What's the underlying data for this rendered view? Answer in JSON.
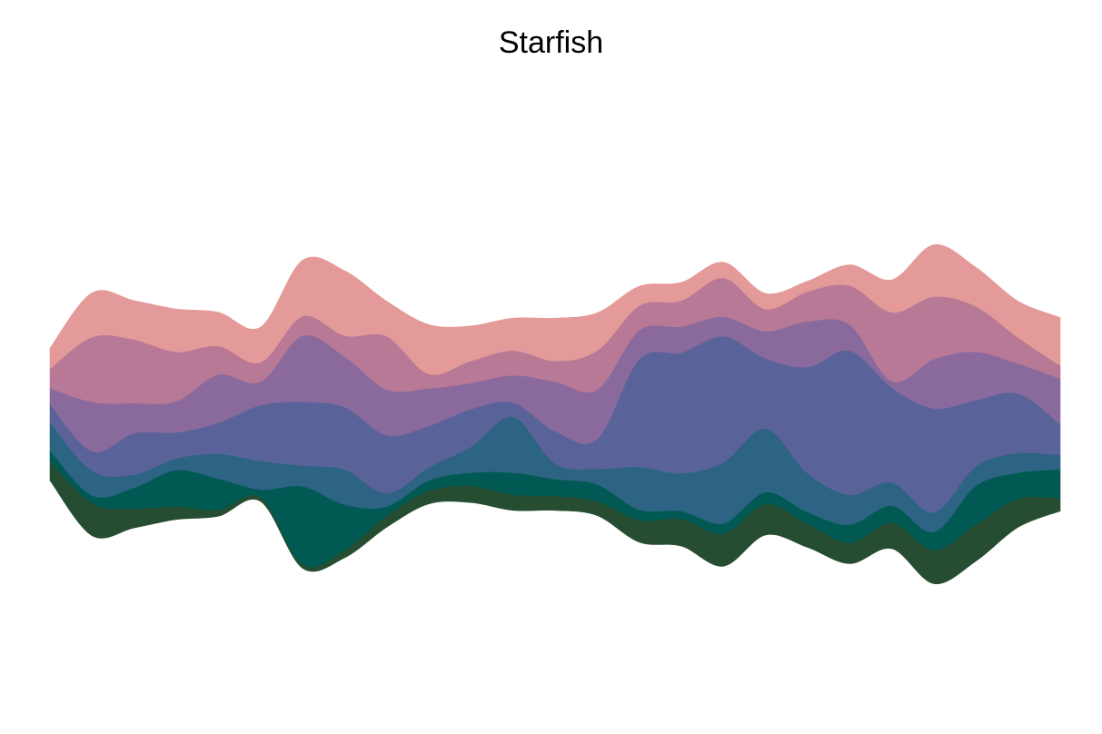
{
  "chart_data": {
    "type": "area",
    "subtype": "streamgraph",
    "title": "Starfish",
    "xlabel": "",
    "ylabel": "",
    "axes_visible": false,
    "grid": false,
    "legend": "none",
    "x": [
      0,
      1,
      2,
      3,
      4,
      5,
      6,
      7,
      8,
      9,
      10,
      11,
      12,
      13,
      14,
      15,
      16,
      17,
      18,
      19,
      20,
      21,
      22,
      23,
      24
    ],
    "series": [
      {
        "color": "#264D32",
        "values": [
          1.5,
          2.5,
          1.5,
          1.0,
          0.5,
          0.3,
          0.3,
          0.6,
          0.9,
          1.0,
          1.3,
          1.2,
          1.1,
          1.1,
          1.7,
          2.1,
          2.5,
          2.4,
          1.8,
          1.6,
          2.0,
          2.6,
          2.8,
          2.2,
          1.0
        ]
      },
      {
        "color": "#005A53",
        "values": [
          0.8,
          0.6,
          1.6,
          2.8,
          2.4,
          0.6,
          6.0,
          3.5,
          0.7,
          0.8,
          1.0,
          1.7,
          1.3,
          1.3,
          0.8,
          0.6,
          0.8,
          0.9,
          0.9,
          1.4,
          1.3,
          1.4,
          3.0,
          2.0,
          2.2
        ]
      },
      {
        "color": "#2D6383",
        "values": [
          2.2,
          1.9,
          1.0,
          0.9,
          1.9,
          2.2,
          1.6,
          2.7,
          1.0,
          1.0,
          2.0,
          4.3,
          1.2,
          1.2,
          3.3,
          2.9,
          4.7,
          4.9,
          3.0,
          2.3,
          1.8,
          1.5,
          1.5,
          1.5,
          1.1
        ]
      },
      {
        "color": "#5A6399",
        "values": [
          1.4,
          1.5,
          3.2,
          2.0,
          2.4,
          4.3,
          4.9,
          4.8,
          4.5,
          3.2,
          2.9,
          1.1,
          2.5,
          2.3,
          8.3,
          9.3,
          9.7,
          5.4,
          8.2,
          11.1,
          7.3,
          8.0,
          5.1,
          4.6,
          2.4
        ]
      },
      {
        "color": "#8A6A9C",
        "values": [
          1.2,
          3.8,
          2.3,
          2.4,
          3.7,
          1.8,
          5.1,
          3.9,
          3.5,
          2.9,
          2.0,
          2.1,
          3.8,
          3.8,
          2.2,
          2.0,
          1.5,
          2.1,
          3.5,
          2.0,
          0.5,
          3.8,
          3.7,
          2.3,
          3.5
        ]
      },
      {
        "color": "#B87996",
        "values": [
          1.5,
          5.0,
          4.9,
          3.8,
          2.2,
          1.5,
          1.5,
          1.6,
          4.1,
          1.1,
          1.7,
          1.9,
          1.6,
          3.0,
          1.9,
          2.0,
          3.0,
          1.7,
          2.3,
          3.0,
          5.3,
          4.8,
          3.5,
          2.0,
          1.0
        ]
      },
      {
        "color": "#E49A98",
        "values": [
          1.6,
          3.4,
          3.0,
          3.3,
          2.6,
          2.7,
          4.3,
          5.0,
          2.7,
          3.8,
          2.7,
          2.5,
          3.3,
          2.9,
          1.5,
          1.4,
          1.2,
          1.2,
          0.8,
          1.6,
          2.5,
          4.0,
          3.0,
          2.8,
          3.7
        ]
      }
    ]
  }
}
